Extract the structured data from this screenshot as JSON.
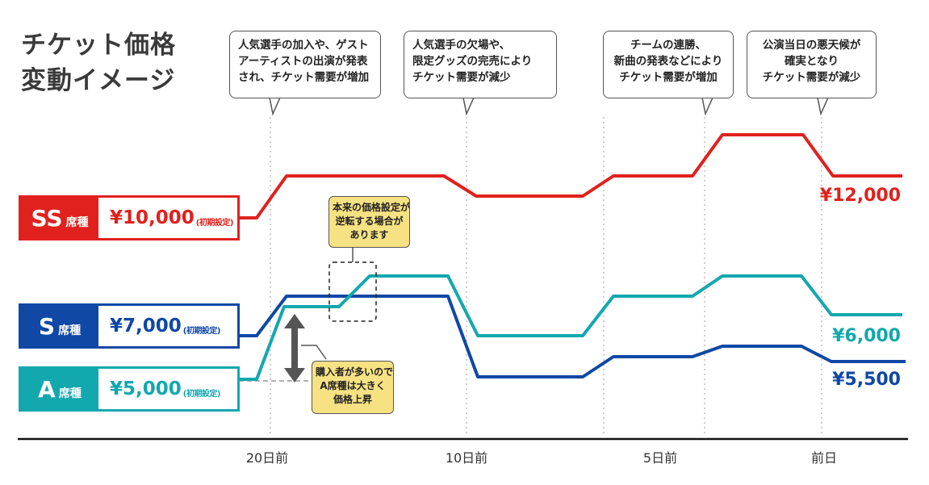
{
  "title": {
    "line1": "チケット価格",
    "line2": "変動イメージ"
  },
  "callouts": [
    {
      "lines": [
        "人気選手の加入や、ゲスト",
        "アーティストの出演が発表",
        "され、チケット需要が増加"
      ]
    },
    {
      "lines": [
        "人気選手の欠場や、",
        "限定グッズの完売により",
        "チケット需要が減少"
      ]
    },
    {
      "lines": [
        "チームの連勝、",
        "新曲の発表などにより",
        "チケット需要が増加"
      ]
    },
    {
      "lines": [
        "公演当日の悪天候が",
        "確実となり",
        "チケット需要が減少"
      ]
    }
  ],
  "notes": {
    "reversal": [
      "本来の価格設定が",
      "逆転する場合が",
      "あります"
    ],
    "demand": [
      "購入者が多いので",
      "A席種は大きく",
      "価格上昇"
    ]
  },
  "seats": [
    {
      "grade": "SS",
      "suffix": "席種",
      "price": "¥10,000",
      "initial": "(初期設定)",
      "end_price": "¥12,000",
      "color": "#e0211d"
    },
    {
      "grade": "S",
      "suffix": "席種",
      "price": "¥7,000",
      "initial": "(初期設定)",
      "end_price": "¥5,500",
      "color": "#0f48a5"
    },
    {
      "grade": "A",
      "suffix": "席種",
      "price": "¥5,000",
      "initial": "(初期設定)",
      "end_price": "¥6,000",
      "color": "#12a8ae"
    }
  ],
  "axis": {
    "ticks": [
      "20日前",
      "10日前",
      "5日前",
      "前日"
    ]
  }
}
